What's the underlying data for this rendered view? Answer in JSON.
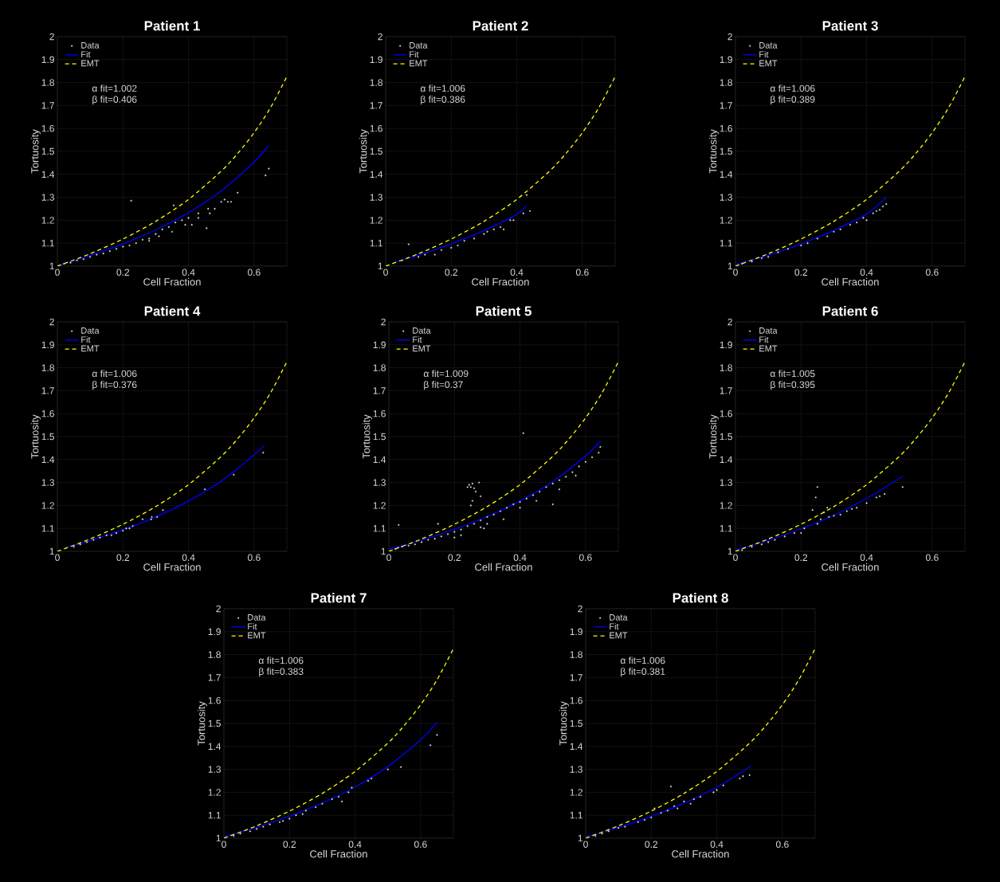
{
  "chart_data": [
    {
      "type": "scatter",
      "title": "Patient 1",
      "xlabel": "Cell Fraction",
      "ylabel": "Tortuosity",
      "xlim": [
        0,
        0.7
      ],
      "ylim": [
        1,
        2
      ],
      "xticks": [
        0,
        0.2,
        0.4,
        0.6
      ],
      "yticks": [
        1,
        1.1,
        1.2,
        1.3,
        1.4,
        1.5,
        1.6,
        1.7,
        1.8,
        1.9,
        2
      ],
      "grid": true,
      "legend": "top left",
      "annotations": [
        "α fit=1.002",
        "β fit=0.406"
      ],
      "series": [
        {
          "name": "Data",
          "type": "scatter",
          "color": "#d9d9d9",
          "x": [
            0.02,
            0.04,
            0.06,
            0.08,
            0.1,
            0.12,
            0.14,
            0.16,
            0.18,
            0.2,
            0.22,
            0.225,
            0.24,
            0.26,
            0.28,
            0.28,
            0.3,
            0.31,
            0.32,
            0.34,
            0.35,
            0.355,
            0.36,
            0.38,
            0.39,
            0.4,
            0.41,
            0.43,
            0.43,
            0.455,
            0.46,
            0.465,
            0.48,
            0.5,
            0.51,
            0.52,
            0.53,
            0.55,
            0.635,
            0.645
          ],
          "values": [
            1.01,
            1.015,
            1.025,
            1.03,
            1.04,
            1.05,
            1.055,
            1.065,
            1.075,
            1.085,
            1.09,
            1.285,
            1.1,
            1.115,
            1.12,
            1.11,
            1.14,
            1.13,
            1.16,
            1.17,
            1.15,
            1.265,
            1.19,
            1.2,
            1.18,
            1.21,
            1.18,
            1.23,
            1.21,
            1.165,
            1.25,
            1.23,
            1.25,
            1.28,
            1.29,
            1.28,
            1.28,
            1.32,
            1.395,
            1.425
          ]
        },
        {
          "name": "Fit",
          "type": "line",
          "color": "#0000ff",
          "line_style": "solid",
          "x": [
            0,
            0.1,
            0.2,
            0.3,
            0.4,
            0.5,
            0.6,
            0.645
          ],
          "values": [
            1.0,
            1.046,
            1.097,
            1.158,
            1.233,
            1.328,
            1.454,
            1.526
          ]
        },
        {
          "name": "EMT",
          "type": "line",
          "color": "#ffff00",
          "line_style": "dashed",
          "x": [
            0,
            0.1,
            0.2,
            0.3,
            0.4,
            0.5,
            0.55,
            0.6,
            0.65,
            0.7
          ],
          "values": [
            1.0,
            1.054,
            1.118,
            1.195,
            1.291,
            1.414,
            1.491,
            1.581,
            1.69,
            1.826
          ]
        }
      ]
    },
    {
      "type": "scatter",
      "title": "Patient 2",
      "xlabel": "Cell Fraction",
      "ylabel": "Tortuosity",
      "xlim": [
        0,
        0.7
      ],
      "ylim": [
        1,
        2
      ],
      "xticks": [
        0,
        0.2,
        0.4,
        0.6
      ],
      "yticks": [
        1,
        1.1,
        1.2,
        1.3,
        1.4,
        1.5,
        1.6,
        1.7,
        1.8,
        1.9,
        2
      ],
      "grid": true,
      "legend": "top left",
      "annotations": [
        "α fit=1.006",
        "β fit=0.386"
      ],
      "series": [
        {
          "name": "Data",
          "type": "scatter",
          "color": "#d9d9d9",
          "x": [
            0.05,
            0.07,
            0.1,
            0.12,
            0.15,
            0.17,
            0.2,
            0.22,
            0.24,
            0.27,
            0.3,
            0.31,
            0.33,
            0.35,
            0.36,
            0.38,
            0.39,
            0.42,
            0.44,
            0.43
          ],
          "values": [
            1.025,
            1.095,
            1.04,
            1.05,
            1.05,
            1.07,
            1.08,
            1.09,
            1.11,
            1.12,
            1.14,
            1.15,
            1.16,
            1.17,
            1.16,
            1.2,
            1.2,
            1.23,
            1.24,
            1.31
          ]
        },
        {
          "name": "Fit",
          "type": "line",
          "color": "#0000ff",
          "line_style": "solid",
          "x": [
            0.03,
            0.1,
            0.2,
            0.3,
            0.4,
            0.43
          ],
          "values": [
            1.018,
            1.048,
            1.097,
            1.155,
            1.225,
            1.265
          ]
        },
        {
          "name": "EMT",
          "type": "line",
          "color": "#ffff00",
          "line_style": "dashed",
          "x": [
            0,
            0.1,
            0.2,
            0.3,
            0.4,
            0.5,
            0.55,
            0.6,
            0.65,
            0.7
          ],
          "values": [
            1.0,
            1.054,
            1.118,
            1.195,
            1.291,
            1.414,
            1.491,
            1.581,
            1.69,
            1.826
          ]
        }
      ]
    },
    {
      "type": "scatter",
      "title": "Patient 3",
      "xlabel": "Cell Fraction",
      "ylabel": "Tortuosity",
      "xlim": [
        0,
        0.7
      ],
      "ylim": [
        1,
        2
      ],
      "xticks": [
        0,
        0.2,
        0.4,
        0.6
      ],
      "yticks": [
        1,
        1.1,
        1.2,
        1.3,
        1.4,
        1.5,
        1.6,
        1.7,
        1.8,
        1.9,
        2
      ],
      "grid": true,
      "legend": "top left",
      "annotations": [
        "α fit=1.006",
        "β fit=0.389"
      ],
      "series": [
        {
          "name": "Data",
          "type": "scatter",
          "color": "#d9d9d9",
          "x": [
            0.02,
            0.05,
            0.08,
            0.1,
            0.13,
            0.16,
            0.2,
            0.22,
            0.25,
            0.28,
            0.3,
            0.32,
            0.35,
            0.37,
            0.39,
            0.4,
            0.42,
            0.43,
            0.44,
            0.45,
            0.46
          ],
          "values": [
            1.01,
            1.02,
            1.035,
            1.04,
            1.06,
            1.075,
            1.09,
            1.1,
            1.12,
            1.13,
            1.15,
            1.16,
            1.18,
            1.19,
            1.21,
            1.2,
            1.23,
            1.24,
            1.245,
            1.26,
            1.27
          ]
        },
        {
          "name": "Fit",
          "type": "line",
          "color": "#0000ff",
          "line_style": "solid",
          "x": [
            0,
            0.1,
            0.2,
            0.3,
            0.4,
            0.46
          ],
          "values": [
            1.006,
            1.048,
            1.097,
            1.156,
            1.227,
            1.3
          ]
        },
        {
          "name": "EMT",
          "type": "line",
          "color": "#ffff00",
          "line_style": "dashed",
          "x": [
            0,
            0.1,
            0.2,
            0.3,
            0.4,
            0.5,
            0.55,
            0.6,
            0.65,
            0.7
          ],
          "values": [
            1.0,
            1.054,
            1.118,
            1.195,
            1.291,
            1.414,
            1.491,
            1.581,
            1.69,
            1.826
          ]
        }
      ]
    },
    {
      "type": "scatter",
      "title": "Patient 4",
      "xlabel": "Cell Fraction",
      "ylabel": "Tortuosity",
      "xlim": [
        0,
        0.7
      ],
      "ylim": [
        1,
        2
      ],
      "xticks": [
        0,
        0.2,
        0.4,
        0.6
      ],
      "yticks": [
        1,
        1.1,
        1.2,
        1.3,
        1.4,
        1.5,
        1.6,
        1.7,
        1.8,
        1.9,
        2
      ],
      "grid": true,
      "legend": "top left",
      "annotations": [
        "α fit=1.006",
        "β fit=0.376"
      ],
      "series": [
        {
          "name": "Data",
          "type": "scatter",
          "color": "#d9d9d9",
          "x": [
            0.05,
            0.07,
            0.09,
            0.11,
            0.13,
            0.15,
            0.165,
            0.18,
            0.2,
            0.21,
            0.22,
            0.23,
            0.26,
            0.286,
            0.288,
            0.304,
            0.322,
            0.45,
            0.538,
            0.628
          ],
          "values": [
            1.02,
            1.03,
            1.04,
            1.05,
            1.06,
            1.07,
            1.07,
            1.08,
            1.09,
            1.1,
            1.1,
            1.11,
            1.14,
            1.14,
            1.15,
            1.15,
            1.18,
            1.27,
            1.334,
            1.43
          ]
        },
        {
          "name": "Fit",
          "type": "line",
          "color": "#0000ff",
          "line_style": "solid",
          "x": [
            0.03,
            0.1,
            0.2,
            0.3,
            0.4,
            0.5,
            0.6,
            0.63
          ],
          "values": [
            1.018,
            1.047,
            1.094,
            1.15,
            1.219,
            1.306,
            1.42,
            1.462
          ]
        },
        {
          "name": "EMT",
          "type": "line",
          "color": "#ffff00",
          "line_style": "dashed",
          "x": [
            0,
            0.1,
            0.2,
            0.3,
            0.4,
            0.5,
            0.55,
            0.6,
            0.65,
            0.7
          ],
          "values": [
            1.0,
            1.054,
            1.118,
            1.195,
            1.291,
            1.414,
            1.491,
            1.581,
            1.69,
            1.826
          ]
        }
      ]
    },
    {
      "type": "scatter",
      "title": "Patient 5",
      "xlabel": "Cell Fraction",
      "ylabel": "Tortuosity",
      "xlim": [
        0,
        0.7
      ],
      "ylim": [
        1,
        2
      ],
      "xticks": [
        0,
        0.2,
        0.4,
        0.6
      ],
      "yticks": [
        1,
        1.1,
        1.2,
        1.3,
        1.4,
        1.5,
        1.6,
        1.7,
        1.8,
        1.9,
        2
      ],
      "grid": true,
      "legend": "top left",
      "annotations": [
        "α fit=1.009",
        "β fit=0.37"
      ],
      "series": [
        {
          "name": "Data",
          "type": "scatter",
          "color": "#d9d9d9",
          "x": [
            0.02,
            0.04,
            0.06,
            0.08,
            0.1,
            0.12,
            0.14,
            0.16,
            0.18,
            0.2,
            0.22,
            0.24,
            0.26,
            0.28,
            0.3,
            0.32,
            0.34,
            0.36,
            0.38,
            0.4,
            0.42,
            0.44,
            0.46,
            0.48,
            0.5,
            0.52,
            0.54,
            0.56,
            0.58,
            0.6,
            0.62,
            0.64,
            0.645,
            0.03,
            0.15,
            0.41,
            0.24,
            0.245,
            0.25,
            0.255,
            0.26,
            0.265,
            0.275,
            0.28,
            0.255,
            0.25,
            0.5,
            0.28,
            0.29,
            0.2,
            0.22,
            0.3,
            0.35,
            0.4,
            0.45,
            0.52,
            0.57
          ],
          "values": [
            1.01,
            1.02,
            1.025,
            1.03,
            1.04,
            1.05,
            1.055,
            1.065,
            1.075,
            1.085,
            1.095,
            1.11,
            1.12,
            1.135,
            1.15,
            1.16,
            1.175,
            1.19,
            1.205,
            1.215,
            1.23,
            1.245,
            1.26,
            1.28,
            1.295,
            1.31,
            1.325,
            1.345,
            1.37,
            1.39,
            1.41,
            1.43,
            1.455,
            1.115,
            1.12,
            1.515,
            1.28,
            1.29,
            1.28,
            1.295,
            1.275,
            1.26,
            1.3,
            1.24,
            1.22,
            1.2,
            1.205,
            1.105,
            1.1,
            1.06,
            1.07,
            1.12,
            1.14,
            1.19,
            1.22,
            1.27,
            1.33
          ]
        },
        {
          "name": "Fit",
          "type": "line",
          "color": "#0000ff",
          "line_style": "solid",
          "x": [
            0,
            0.1,
            0.2,
            0.3,
            0.4,
            0.5,
            0.6,
            0.645
          ],
          "values": [
            1.009,
            1.049,
            1.096,
            1.151,
            1.219,
            1.304,
            1.416,
            1.48
          ]
        },
        {
          "name": "EMT",
          "type": "line",
          "color": "#ffff00",
          "line_style": "dashed",
          "x": [
            0,
            0.1,
            0.2,
            0.3,
            0.4,
            0.5,
            0.55,
            0.6,
            0.65,
            0.7
          ],
          "values": [
            1.0,
            1.054,
            1.118,
            1.195,
            1.291,
            1.414,
            1.491,
            1.581,
            1.69,
            1.826
          ]
        }
      ]
    },
    {
      "type": "scatter",
      "title": "Patient 6",
      "xlabel": "Cell Fraction",
      "ylabel": "Tortuosity",
      "xlim": [
        0,
        0.7
      ],
      "ylim": [
        1,
        2
      ],
      "xticks": [
        0,
        0.2,
        0.4,
        0.6
      ],
      "yticks": [
        1,
        1.1,
        1.2,
        1.3,
        1.4,
        1.5,
        1.6,
        1.7,
        1.8,
        1.9,
        2
      ],
      "grid": true,
      "legend": "top left",
      "annotations": [
        "α fit=1.005",
        "β fit=0.395"
      ],
      "series": [
        {
          "name": "Data",
          "type": "scatter",
          "color": "#d9d9d9",
          "x": [
            0.02,
            0.05,
            0.08,
            0.1,
            0.12,
            0.15,
            0.18,
            0.2,
            0.21,
            0.235,
            0.245,
            0.25,
            0.25,
            0.26,
            0.27,
            0.28,
            0.285,
            0.3,
            0.32,
            0.34,
            0.355,
            0.37,
            0.4,
            0.43,
            0.44,
            0.455,
            0.51
          ],
          "values": [
            1.005,
            1.02,
            1.03,
            1.04,
            1.05,
            1.065,
            1.08,
            1.08,
            1.1,
            1.18,
            1.235,
            1.28,
            1.12,
            1.14,
            1.17,
            1.19,
            1.15,
            1.155,
            1.16,
            1.175,
            1.185,
            1.19,
            1.21,
            1.235,
            1.24,
            1.25,
            1.28
          ]
        },
        {
          "name": "Fit",
          "type": "line",
          "color": "#0000ff",
          "line_style": "solid",
          "x": [
            0,
            0.1,
            0.2,
            0.3,
            0.4,
            0.51
          ],
          "values": [
            1.005,
            1.048,
            1.098,
            1.157,
            1.23,
            1.327
          ]
        },
        {
          "name": "EMT",
          "type": "line",
          "color": "#ffff00",
          "line_style": "dashed",
          "x": [
            0,
            0.1,
            0.2,
            0.3,
            0.4,
            0.5,
            0.55,
            0.6,
            0.65,
            0.7
          ],
          "values": [
            1.0,
            1.054,
            1.118,
            1.195,
            1.291,
            1.414,
            1.491,
            1.581,
            1.69,
            1.826
          ]
        }
      ]
    },
    {
      "type": "scatter",
      "title": "Patient 7",
      "xlabel": "Cell Fraction",
      "ylabel": "Tortuosity",
      "xlim": [
        0,
        0.7
      ],
      "ylim": [
        1,
        2
      ],
      "xticks": [
        0,
        0.2,
        0.4,
        0.6
      ],
      "yticks": [
        1,
        1.1,
        1.2,
        1.3,
        1.4,
        1.5,
        1.6,
        1.7,
        1.8,
        1.9,
        2
      ],
      "grid": true,
      "legend": "top left",
      "annotations": [
        "α fit=1.006",
        "β fit=0.383"
      ],
      "series": [
        {
          "name": "Data",
          "type": "scatter",
          "color": "#d9d9d9",
          "x": [
            0.03,
            0.05,
            0.08,
            0.1,
            0.12,
            0.14,
            0.17,
            0.18,
            0.2,
            0.22,
            0.24,
            0.25,
            0.28,
            0.3,
            0.33,
            0.35,
            0.36,
            0.38,
            0.39,
            0.44,
            0.45,
            0.5,
            0.54,
            0.63,
            0.65
          ],
          "values": [
            1.01,
            1.02,
            1.03,
            1.04,
            1.05,
            1.06,
            1.07,
            1.075,
            1.085,
            1.1,
            1.105,
            1.12,
            1.135,
            1.15,
            1.17,
            1.18,
            1.16,
            1.2,
            1.22,
            1.25,
            1.26,
            1.3,
            1.31,
            1.405,
            1.45
          ]
        },
        {
          "name": "Fit",
          "type": "line",
          "color": "#0000ff",
          "line_style": "solid",
          "x": [
            0,
            0.1,
            0.2,
            0.3,
            0.4,
            0.5,
            0.6,
            0.65
          ],
          "values": [
            1.006,
            1.047,
            1.096,
            1.153,
            1.223,
            1.312,
            1.429,
            1.504
          ]
        },
        {
          "name": "EMT",
          "type": "line",
          "color": "#ffff00",
          "line_style": "dashed",
          "x": [
            0,
            0.1,
            0.2,
            0.3,
            0.4,
            0.5,
            0.55,
            0.6,
            0.65,
            0.7
          ],
          "values": [
            1.0,
            1.054,
            1.118,
            1.195,
            1.291,
            1.414,
            1.491,
            1.581,
            1.69,
            1.826
          ]
        }
      ]
    },
    {
      "type": "scatter",
      "title": "Patient 8",
      "xlabel": "Cell Fraction",
      "ylabel": "Tortuosity",
      "xlim": [
        0,
        0.7
      ],
      "ylim": [
        1,
        2
      ],
      "xticks": [
        0,
        0.2,
        0.4,
        0.6
      ],
      "yticks": [
        1,
        1.1,
        1.2,
        1.3,
        1.4,
        1.5,
        1.6,
        1.7,
        1.8,
        1.9,
        2
      ],
      "grid": true,
      "legend": "top left",
      "annotations": [
        "α fit=1.006",
        "β fit=0.381"
      ],
      "series": [
        {
          "name": "Data",
          "type": "scatter",
          "color": "#d9d9d9",
          "x": [
            0.03,
            0.05,
            0.07,
            0.1,
            0.12,
            0.16,
            0.18,
            0.2,
            0.21,
            0.23,
            0.25,
            0.26,
            0.27,
            0.28,
            0.3,
            0.32,
            0.33,
            0.35,
            0.39,
            0.4,
            0.42,
            0.47,
            0.48,
            0.5
          ],
          "values": [
            1.01,
            1.02,
            1.03,
            1.045,
            1.05,
            1.07,
            1.08,
            1.09,
            1.13,
            1.11,
            1.12,
            1.225,
            1.14,
            1.13,
            1.16,
            1.15,
            1.17,
            1.18,
            1.2,
            1.21,
            1.23,
            1.26,
            1.27,
            1.275
          ]
        },
        {
          "name": "Fit",
          "type": "line",
          "color": "#0000ff",
          "line_style": "solid",
          "x": [
            0,
            0.1,
            0.2,
            0.3,
            0.4,
            0.505
          ],
          "values": [
            1.006,
            1.047,
            1.095,
            1.152,
            1.222,
            1.315
          ]
        },
        {
          "name": "EMT",
          "type": "line",
          "color": "#ffff00",
          "line_style": "dashed",
          "x": [
            0,
            0.1,
            0.2,
            0.3,
            0.4,
            0.5,
            0.55,
            0.6,
            0.65,
            0.7
          ],
          "values": [
            1.0,
            1.054,
            1.118,
            1.195,
            1.291,
            1.414,
            1.491,
            1.581,
            1.69,
            1.826
          ]
        }
      ]
    }
  ]
}
